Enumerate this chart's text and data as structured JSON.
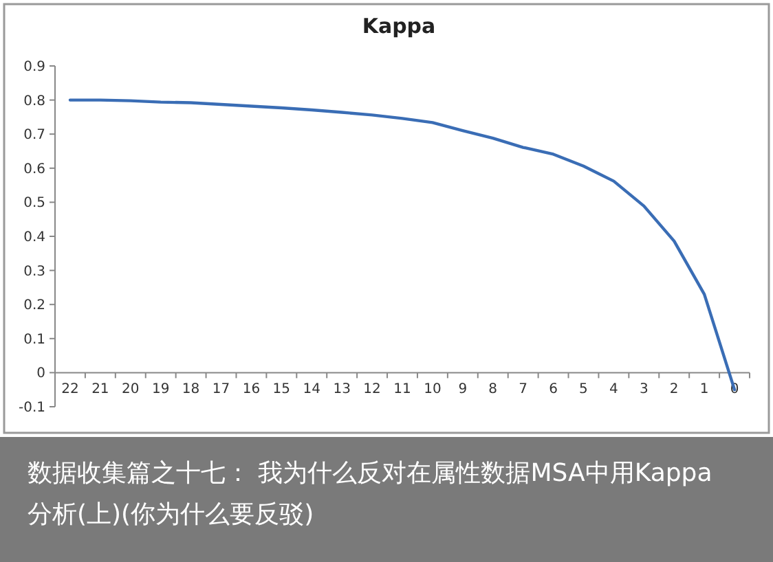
{
  "chart_data": {
    "type": "line",
    "title": "Kappa",
    "categories": [
      "22",
      "21",
      "20",
      "19",
      "18",
      "17",
      "16",
      "15",
      "14",
      "13",
      "12",
      "11",
      "10",
      "9",
      "8",
      "7",
      "6",
      "5",
      "4",
      "3",
      "2",
      "1",
      "0"
    ],
    "series": [
      {
        "color": "#3a6db5",
        "values": [
          0.8,
          0.8,
          0.798,
          0.794,
          0.792,
          0.787,
          0.782,
          0.777,
          0.771,
          0.764,
          0.756,
          0.746,
          0.734,
          0.71,
          0.688,
          0.661,
          0.641,
          0.606,
          0.562,
          0.489,
          0.386,
          0.23,
          -0.05
        ]
      }
    ],
    "ylim": [
      -0.1,
      0.9
    ],
    "yticks": [
      -0.1,
      0,
      0.1,
      0.2,
      0.3,
      0.4,
      0.5,
      0.6,
      0.7,
      0.8,
      0.9
    ],
    "annotations": [
      "数据收集篇之十七： 我为什么反对在属性数据MSA中用Kappa分析(上)(你为什么要反驳)"
    ]
  }
}
